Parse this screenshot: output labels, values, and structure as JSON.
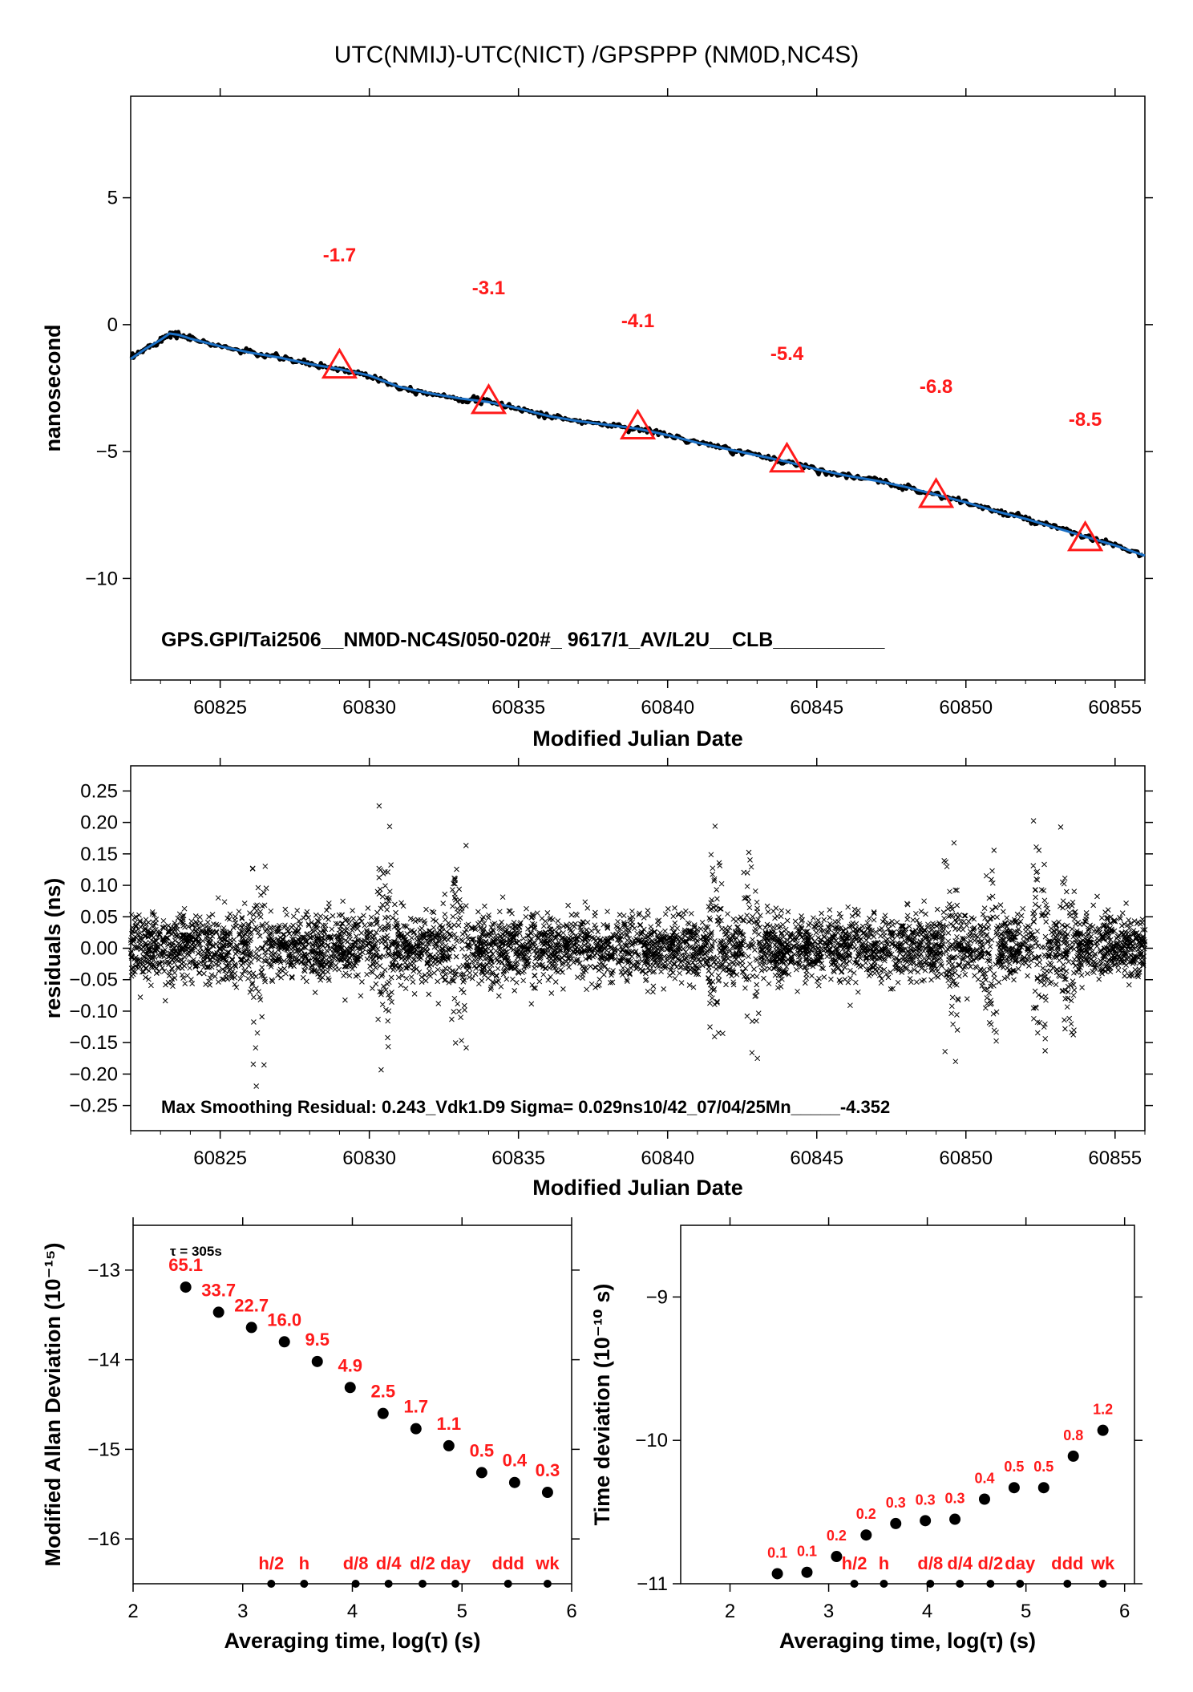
{
  "title": "UTC(NMIJ)-UTC(NICT)  /GPSPPP  (NM0D,NC4S)",
  "chart_data": [
    {
      "id": "time-series",
      "type": "line",
      "xlabel": "Modified Julian Date",
      "ylabel": "nanosecond",
      "xlim": [
        60822,
        60856
      ],
      "ylim": [
        -14,
        9
      ],
      "xticks": [
        60825,
        60830,
        60835,
        60840,
        60845,
        60850,
        60855
      ],
      "yticks": [
        5,
        0,
        -5,
        -10
      ],
      "ytick_labels": [
        "5",
        "0",
        "−5",
        "−10"
      ],
      "line_color": "#1a6fc4",
      "series": [
        {
          "x": [
            60822.0,
            60822.5,
            60823.0,
            60823.3,
            60823.6,
            60824.0,
            60825.0,
            60826.0,
            60827.0,
            60828.0,
            60829.0,
            60830.0,
            60831.0,
            60832.0,
            60833.0,
            60834.0,
            60835.0,
            60836.0,
            60837.0,
            60838.0,
            60839.0,
            60840.0,
            60841.0,
            60842.0,
            60843.0,
            60844.0,
            60845.0,
            60846.0,
            60847.0,
            60848.0,
            60849.0,
            60850.0,
            60851.0,
            60852.0,
            60853.0,
            60854.0,
            60855.0,
            60856.0
          ],
          "y": [
            -1.35,
            -0.95,
            -0.6,
            -0.35,
            -0.4,
            -0.55,
            -0.85,
            -1.1,
            -1.3,
            -1.55,
            -1.75,
            -2.0,
            -2.45,
            -2.7,
            -2.9,
            -3.05,
            -3.3,
            -3.6,
            -3.8,
            -3.95,
            -4.1,
            -4.35,
            -4.65,
            -4.9,
            -5.15,
            -5.4,
            -5.7,
            -5.95,
            -6.15,
            -6.4,
            -6.7,
            -7.0,
            -7.35,
            -7.65,
            -8.0,
            -8.35,
            -8.7,
            -9.1
          ]
        }
      ],
      "markers": [
        {
          "x": 60829,
          "y": -1.7,
          "label": "-1.7"
        },
        {
          "x": 60834,
          "y": -3.1,
          "label": "-3.1"
        },
        {
          "x": 60839,
          "y": -4.1,
          "label": "-4.1"
        },
        {
          "x": 60844,
          "y": -5.4,
          "label": "-5.4"
        },
        {
          "x": 60849,
          "y": -6.8,
          "label": "-6.8"
        },
        {
          "x": 60854,
          "y": -8.5,
          "label": "-8.5"
        }
      ],
      "annotation": "GPS.GPI/Tai2506__NM0D-NC4S/050-020#_  9617/1_AV/L2U__CLB__________"
    },
    {
      "id": "residuals",
      "type": "scatter",
      "xlabel": "Modified Julian Date",
      "ylabel": "residuals (ns)",
      "xlim": [
        60822,
        60856
      ],
      "ylim": [
        -0.29,
        0.29
      ],
      "xticks": [
        60825,
        60830,
        60835,
        60840,
        60845,
        60850,
        60855
      ],
      "yticks": [
        0.25,
        0.2,
        0.15,
        0.1,
        0.05,
        0.0,
        -0.05,
        -0.1,
        -0.15,
        -0.2,
        -0.25
      ],
      "ytick_labels": [
        "0.25",
        "0.20",
        "0.15",
        "0.10",
        "0.05",
        "0.00",
        "−0.05",
        "−0.10",
        "−0.15",
        "−0.20",
        "−0.25"
      ],
      "sigma": 0.029,
      "max_residual": 0.243,
      "annotation": "Max Smoothing Residual: 0.243_Vdk1.D9  Sigma= 0.029ns10/42_07/04/25Mn_____-4.352"
    },
    {
      "id": "mdev",
      "type": "scatter",
      "xlabel": "Averaging time, log(τ) (s)",
      "ylabel": "Modified Allan Deviation (10⁻¹⁵)",
      "xlim": [
        2,
        6
      ],
      "ylim": [
        -16.5,
        -12.5
      ],
      "xticks": [
        2,
        3,
        4,
        5,
        6
      ],
      "yticks": [
        -13,
        -14,
        -15,
        -16
      ],
      "ytick_labels": [
        "−13",
        "−14",
        "−15",
        "−16"
      ],
      "tau0_label": "τ = 305s",
      "x": [
        2.48,
        2.78,
        3.08,
        3.38,
        3.68,
        3.98,
        4.28,
        4.58,
        4.88,
        5.18,
        5.48,
        5.78
      ],
      "y": [
        -13.19,
        -13.47,
        -13.64,
        -13.8,
        -14.02,
        -14.31,
        -14.6,
        -14.77,
        -14.96,
        -15.26,
        -15.37,
        -15.48
      ],
      "labels": [
        "65.1",
        "33.7",
        "22.7",
        "16.0",
        "9.5",
        "4.9",
        "2.5",
        "1.7",
        "1.1",
        "0.5",
        "0.4",
        "0.3"
      ],
      "ref_marks": [
        {
          "x": 3.26,
          "label": "h/2"
        },
        {
          "x": 3.56,
          "label": "h"
        },
        {
          "x": 4.03,
          "label": "d/8"
        },
        {
          "x": 4.33,
          "label": "d/4"
        },
        {
          "x": 4.64,
          "label": "d/2"
        },
        {
          "x": 4.94,
          "label": "day"
        },
        {
          "x": 5.42,
          "label": "ddd"
        },
        {
          "x": 5.78,
          "label": "wk"
        }
      ]
    },
    {
      "id": "tdev",
      "type": "scatter",
      "xlabel": "Averaging time, log(τ) (s)",
      "ylabel": "Time deviation (10⁻¹⁰ s)",
      "xlim": [
        1.5,
        6.1
      ],
      "ylim": [
        -11,
        -8.5
      ],
      "xticks": [
        2,
        3,
        4,
        5,
        6
      ],
      "yticks": [
        -9,
        -10,
        -11
      ],
      "ytick_labels": [
        "−9",
        "−10",
        "−11"
      ],
      "x": [
        2.48,
        2.78,
        3.08,
        3.38,
        3.68,
        3.98,
        4.28,
        4.58,
        4.88,
        5.18,
        5.48,
        5.78
      ],
      "y": [
        -10.93,
        -10.92,
        -10.81,
        -10.66,
        -10.58,
        -10.56,
        -10.55,
        -10.41,
        -10.33,
        -10.33,
        -10.11,
        -9.93
      ],
      "labels": [
        "0.1",
        "0.1",
        "0.2",
        "0.2",
        "0.3",
        "0.3",
        "0.3",
        "0.4",
        "0.5",
        "0.5",
        "0.8",
        "1.2"
      ],
      "ref_marks": [
        {
          "x": 3.26,
          "label": "h/2"
        },
        {
          "x": 3.56,
          "label": "h"
        },
        {
          "x": 4.03,
          "label": "d/8"
        },
        {
          "x": 4.33,
          "label": "d/4"
        },
        {
          "x": 4.64,
          "label": "d/2"
        },
        {
          "x": 4.94,
          "label": "day"
        },
        {
          "x": 5.42,
          "label": "ddd"
        },
        {
          "x": 5.78,
          "label": "wk"
        }
      ]
    }
  ]
}
